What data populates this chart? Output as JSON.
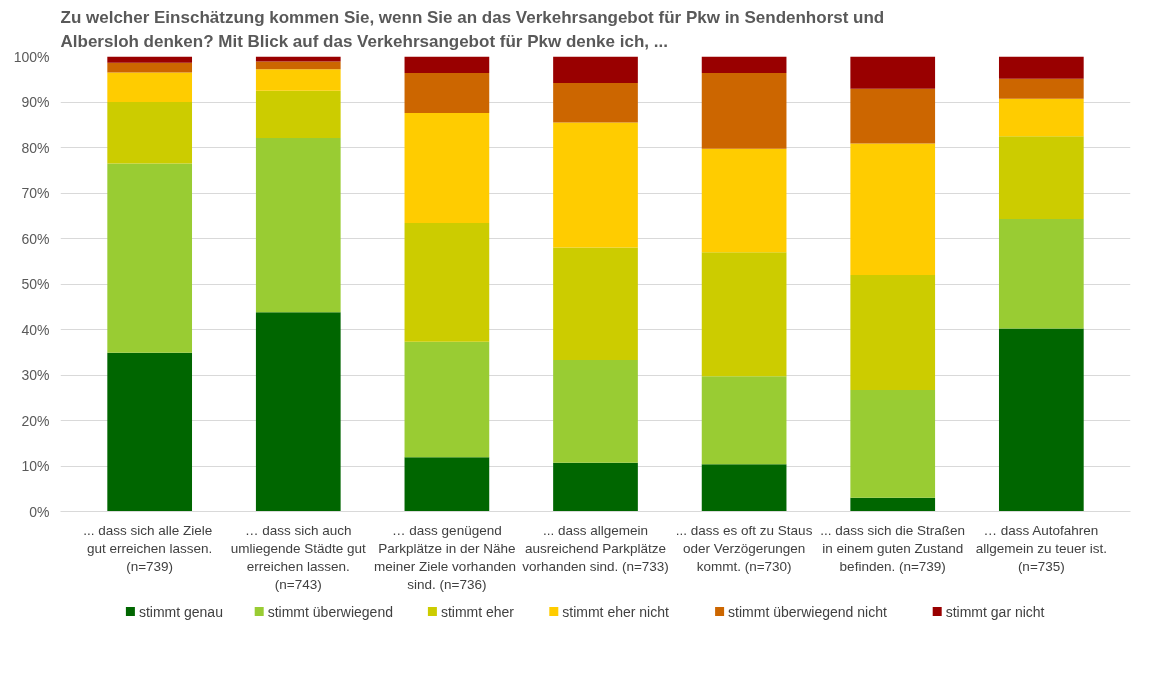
{
  "chart_data": {
    "type": "bar",
    "stacked": true,
    "title": "Zu welcher Einschätzung kommen Sie, wenn Sie an das Verkehrsangebot für Pkw in Sendenhorst und\nAlbersloh denken?     Mit Blick auf das Verkehrsangebot für Pkw denke ich, ...",
    "categories": [
      "... dass sich alle  Ziele\ngut erreichen lassen.\n(n=739)",
      "… dass sich auch\numliegende Städte gut\nerreichen lassen.\n(n=743)",
      "… dass genügend\nParkplätze in der Nähe\nmeiner  Ziele vorhanden\nsind. (n=736)",
      "... dass allgemein\nausreichend Parkplätze\nvorhanden sind. (n=733)",
      "... dass es oft zu Staus\noder Verzögerungen\nkommt. (n=730)",
      "... dass sich die Straßen\nin einem guten Zustand\nbefinden. (n=739)",
      "… dass Autofahren\nallgemein zu teuer ist.\n(n=735)"
    ],
    "series": [
      {
        "name": "stimmt genau",
        "color": "#006600",
        "values": [
          34.9,
          43.8,
          11.9,
          10.7,
          10.4,
          3.0,
          40.2
        ]
      },
      {
        "name": "stimmt überwiegend",
        "color": "#99cc33",
        "values": [
          41.6,
          38.3,
          25.4,
          22.6,
          19.3,
          23.7,
          24.1
        ]
      },
      {
        "name": "stimmt eher",
        "color": "#cccc00",
        "values": [
          13.5,
          10.4,
          26.1,
          24.7,
          27.3,
          25.3,
          18.2
        ]
      },
      {
        "name": "stimmt eher nicht",
        "color": "#ffcc00",
        "values": [
          6.5,
          4.7,
          24.2,
          27.5,
          22.7,
          28.9,
          8.2
        ]
      },
      {
        "name": "stimmt überwiegend nicht",
        "color": "#cc6600",
        "values": [
          2.1,
          1.7,
          8.8,
          8.7,
          16.7,
          12.0,
          4.4
        ]
      },
      {
        "name": "stimmt gar nicht",
        "color": "#990000",
        "values": [
          1.4,
          1.1,
          3.6,
          5.8,
          3.6,
          7.1,
          4.9
        ]
      }
    ],
    "ylim": [
      0,
      100
    ],
    "yticks": [
      {
        "value": 0,
        "label": "0%"
      },
      {
        "value": 10,
        "label": "10%"
      },
      {
        "value": 20,
        "label": "20%"
      },
      {
        "value": 30,
        "label": "30%"
      },
      {
        "value": 40,
        "label": "40%"
      },
      {
        "value": 50,
        "label": "50%"
      },
      {
        "value": 60,
        "label": "60%"
      },
      {
        "value": 70,
        "label": "70%"
      },
      {
        "value": 80,
        "label": "80%"
      },
      {
        "value": 90,
        "label": "90%"
      },
      {
        "value": 100,
        "label": "100%"
      }
    ],
    "grid": "y",
    "legend": "bottom"
  }
}
